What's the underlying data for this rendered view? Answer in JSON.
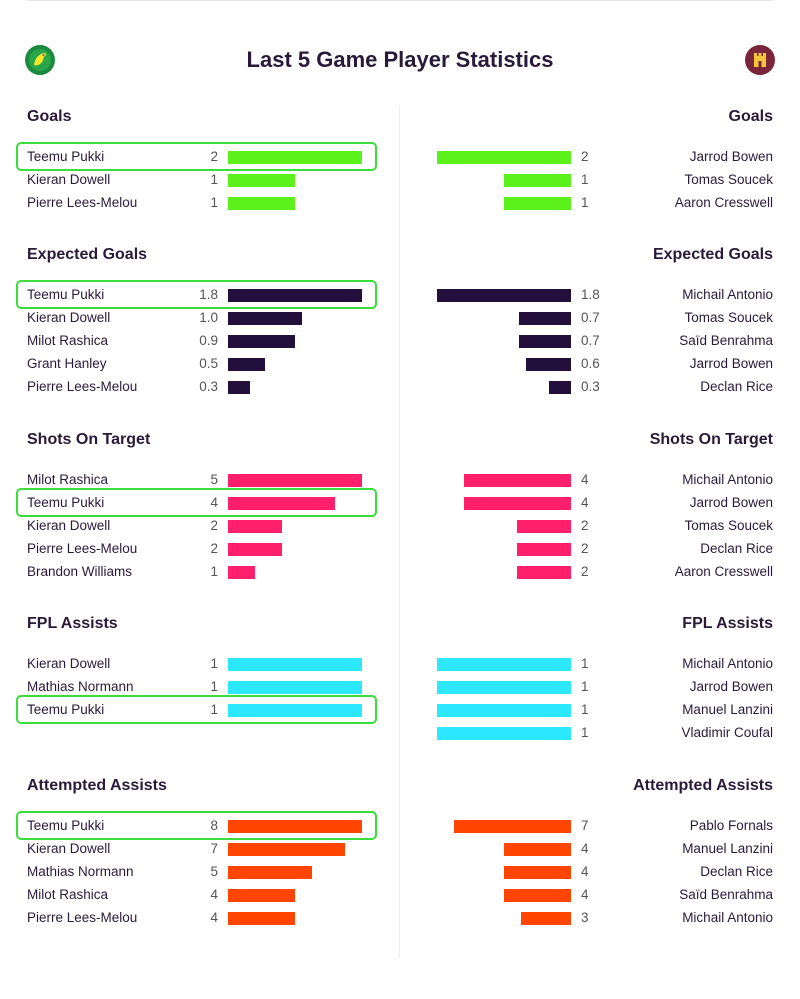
{
  "header": {
    "title": "Last 5 Game Player Statistics",
    "home_crest_icon": "canary-crest-icon",
    "away_crest_icon": "castle-crest-icon",
    "home_crest_color": "#1c8a3c",
    "away_crest_color": "#7a263a"
  },
  "colors": {
    "goals": "#5cf11a",
    "expected_goals": "#220f3c",
    "shots_on_target": "#ff1f6a",
    "fpl_assists": "#2be8ff",
    "attempted_assists": "#ff4500",
    "highlight": "#3ddc3d"
  },
  "chart_data": [
    {
      "type": "bar",
      "title": "Goals",
      "home": [
        {
          "player": "Teemu Pukki",
          "value": 2,
          "display": "2"
        },
        {
          "player": "Kieran Dowell",
          "value": 1,
          "display": "1"
        },
        {
          "player": "Pierre Lees-Melou",
          "value": 1,
          "display": "1"
        }
      ],
      "away": [
        {
          "player": "Jarrod Bowen",
          "value": 2,
          "display": "2"
        },
        {
          "player": "Tomas Soucek",
          "value": 1,
          "display": "1"
        },
        {
          "player": "Aaron Cresswell",
          "value": 1,
          "display": "1"
        }
      ]
    },
    {
      "type": "bar",
      "title": "Expected Goals",
      "home": [
        {
          "player": "Teemu Pukki",
          "value": 1.8,
          "display": "1.8"
        },
        {
          "player": "Kieran Dowell",
          "value": 1.0,
          "display": "1.0"
        },
        {
          "player": "Milot Rashica",
          "value": 0.9,
          "display": "0.9"
        },
        {
          "player": "Grant Hanley",
          "value": 0.5,
          "display": "0.5"
        },
        {
          "player": "Pierre Lees-Melou",
          "value": 0.3,
          "display": "0.3"
        }
      ],
      "away": [
        {
          "player": "Michail Antonio",
          "value": 1.8,
          "display": "1.8"
        },
        {
          "player": "Tomas Soucek",
          "value": 0.7,
          "display": "0.7"
        },
        {
          "player": "Saïd Benrahma",
          "value": 0.7,
          "display": "0.7"
        },
        {
          "player": "Jarrod Bowen",
          "value": 0.6,
          "display": "0.6"
        },
        {
          "player": "Declan Rice",
          "value": 0.3,
          "display": "0.3"
        }
      ]
    },
    {
      "type": "bar",
      "title": "Shots On Target",
      "home": [
        {
          "player": "Milot Rashica",
          "value": 5,
          "display": "5"
        },
        {
          "player": "Teemu Pukki",
          "value": 4,
          "display": "4"
        },
        {
          "player": "Kieran Dowell",
          "value": 2,
          "display": "2"
        },
        {
          "player": "Pierre Lees-Melou",
          "value": 2,
          "display": "2"
        },
        {
          "player": "Brandon Williams",
          "value": 1,
          "display": "1"
        }
      ],
      "away": [
        {
          "player": "Michail Antonio",
          "value": 4,
          "display": "4"
        },
        {
          "player": "Jarrod Bowen",
          "value": 4,
          "display": "4"
        },
        {
          "player": "Tomas Soucek",
          "value": 2,
          "display": "2"
        },
        {
          "player": "Declan Rice",
          "value": 2,
          "display": "2"
        },
        {
          "player": "Aaron Cresswell",
          "value": 2,
          "display": "2"
        }
      ]
    },
    {
      "type": "bar",
      "title": "FPL Assists",
      "home": [
        {
          "player": "Kieran Dowell",
          "value": 1,
          "display": "1"
        },
        {
          "player": "Mathias Normann",
          "value": 1,
          "display": "1"
        },
        {
          "player": "Teemu Pukki",
          "value": 1,
          "display": "1"
        }
      ],
      "away": [
        {
          "player": "Michail Antonio",
          "value": 1,
          "display": "1"
        },
        {
          "player": "Jarrod Bowen",
          "value": 1,
          "display": "1"
        },
        {
          "player": "Manuel Lanzini",
          "value": 1,
          "display": "1"
        },
        {
          "player": "Vladimir Coufal",
          "value": 1,
          "display": "1"
        }
      ]
    },
    {
      "type": "bar",
      "title": "Attempted Assists",
      "home": [
        {
          "player": "Teemu Pukki",
          "value": 8,
          "display": "8"
        },
        {
          "player": "Kieran Dowell",
          "value": 7,
          "display": "7"
        },
        {
          "player": "Mathias Normann",
          "value": 5,
          "display": "5"
        },
        {
          "player": "Milot Rashica",
          "value": 4,
          "display": "4"
        },
        {
          "player": "Pierre Lees-Melou",
          "value": 4,
          "display": "4"
        }
      ],
      "away": [
        {
          "player": "Pablo Fornals",
          "value": 7,
          "display": "7"
        },
        {
          "player": "Manuel Lanzini",
          "value": 4,
          "display": "4"
        },
        {
          "player": "Declan Rice",
          "value": 4,
          "display": "4"
        },
        {
          "player": "Saïd Benrahma",
          "value": 4,
          "display": "4"
        },
        {
          "player": "Michail Antonio",
          "value": 3,
          "display": "3"
        }
      ]
    }
  ],
  "highlighted_player": "Teemu Pukki"
}
